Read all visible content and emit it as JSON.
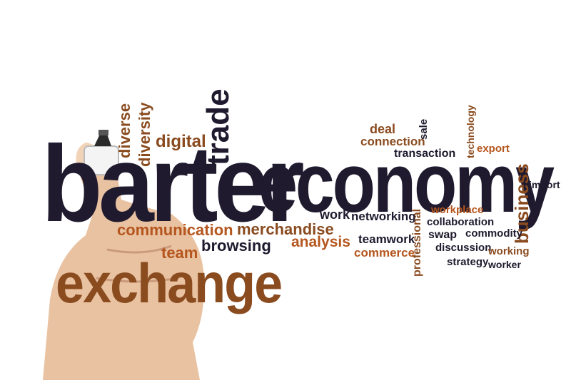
{
  "colors": {
    "dark": "#1f1a2e",
    "brown": "#8a4b1f",
    "orange": "#b5561e",
    "gray": "#3a3a3a",
    "skin": "#e9c2a2"
  },
  "words": {
    "barter": "barter",
    "economy": "economy",
    "exchange": "exchange",
    "trade": "trade",
    "diverse": "diverse",
    "diversity": "diversity",
    "digital": "digital",
    "communication": "communication",
    "merchandise": "merchandise",
    "team": "team",
    "browsing": "browsing",
    "analysis": "analysis",
    "work": "work",
    "networking": "networking",
    "deal": "deal",
    "connection": "connection",
    "sale": "sale",
    "transaction": "transaction",
    "technology": "technology",
    "export": "export",
    "business": "business",
    "import": "import",
    "workplace": "workplace",
    "collaboration": "collaboration",
    "professional": "professional",
    "teamwork": "teamwork",
    "commerce": "commerce",
    "swap": "swap",
    "commodity": "commodity",
    "discussion": "discussion",
    "working": "working",
    "strategy": "strategy",
    "worker": "worker"
  }
}
